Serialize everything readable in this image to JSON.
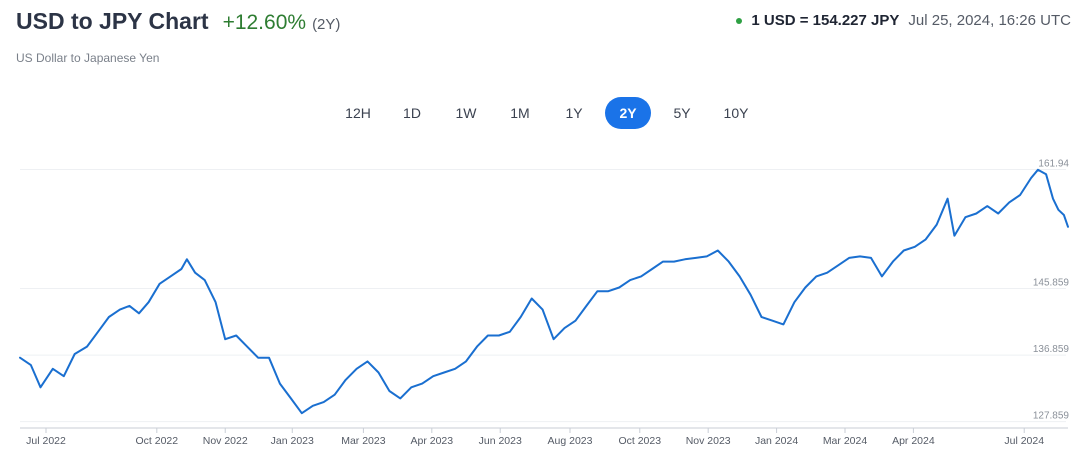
{
  "header": {
    "title": "USD to JPY Chart",
    "change": "+12.60%",
    "period": "(2Y)",
    "subtitle": "US Dollar to Japanese Yen"
  },
  "quote": {
    "rate": "1 USD = 154.227 JPY",
    "timestamp": "Jul 25, 2024, 16:26 UTC",
    "status_color": "#2ea043"
  },
  "ranges": [
    "12H",
    "1D",
    "1W",
    "1M",
    "1Y",
    "2Y",
    "5Y",
    "10Y"
  ],
  "active_range": "2Y",
  "chart_data": {
    "type": "line",
    "title": "",
    "xlabel": "",
    "ylabel": "",
    "line_color": "#1a6fd0",
    "grid": true,
    "y_axis_side": "right",
    "ylim": [
      127.0,
      163.5
    ],
    "y_ticks": [
      {
        "label": "161.94",
        "value": 161.94
      },
      {
        "label": "145.859",
        "value": 145.859
      },
      {
        "label": "136.859",
        "value": 136.859
      },
      {
        "label": "127.859",
        "value": 127.859
      }
    ],
    "x_range": [
      "2022-06-20",
      "2024-07-25"
    ],
    "x_ticks": [
      {
        "label": "Jul 2022",
        "date": "2022-07-09"
      },
      {
        "label": "Oct 2022",
        "date": "2022-09-28"
      },
      {
        "label": "Nov 2022",
        "date": "2022-11-17"
      },
      {
        "label": "Jan 2023",
        "date": "2023-01-05"
      },
      {
        "label": "Mar 2023",
        "date": "2023-02-26"
      },
      {
        "label": "Apr 2023",
        "date": "2023-04-17"
      },
      {
        "label": "Jun 2023",
        "date": "2023-06-06"
      },
      {
        "label": "Aug 2023",
        "date": "2023-07-27"
      },
      {
        "label": "Oct 2023",
        "date": "2023-09-16"
      },
      {
        "label": "Nov 2023",
        "date": "2023-11-05"
      },
      {
        "label": "Jan 2024",
        "date": "2023-12-25"
      },
      {
        "label": "Mar 2024",
        "date": "2024-02-13"
      },
      {
        "label": "Apr 2024",
        "date": "2024-04-03"
      },
      {
        "label": "Jul 2024",
        "date": "2024-06-23"
      }
    ],
    "series": [
      {
        "name": "",
        "points": [
          [
            "2022-06-20",
            136.5
          ],
          [
            "2022-06-28",
            135.5
          ],
          [
            "2022-07-05",
            132.5
          ],
          [
            "2022-07-14",
            135.0
          ],
          [
            "2022-07-22",
            134.0
          ],
          [
            "2022-07-30",
            137.0
          ],
          [
            "2022-08-08",
            138.0
          ],
          [
            "2022-08-16",
            140.0
          ],
          [
            "2022-08-24",
            142.0
          ],
          [
            "2022-09-01",
            143.0
          ],
          [
            "2022-09-08",
            143.5
          ],
          [
            "2022-09-15",
            142.5
          ],
          [
            "2022-09-22",
            144.0
          ],
          [
            "2022-09-30",
            146.5
          ],
          [
            "2022-10-08",
            147.5
          ],
          [
            "2022-10-16",
            148.5
          ],
          [
            "2022-10-20",
            149.8
          ],
          [
            "2022-10-26",
            148.0
          ],
          [
            "2022-11-02",
            147.0
          ],
          [
            "2022-11-10",
            144.0
          ],
          [
            "2022-11-17",
            139.0
          ],
          [
            "2022-11-25",
            139.5
          ],
          [
            "2022-12-03",
            138.0
          ],
          [
            "2022-12-11",
            136.5
          ],
          [
            "2022-12-19",
            136.5
          ],
          [
            "2022-12-27",
            133.0
          ],
          [
            "2023-01-04",
            131.0
          ],
          [
            "2023-01-12",
            129.0
          ],
          [
            "2023-01-20",
            130.0
          ],
          [
            "2023-01-28",
            130.5
          ],
          [
            "2023-02-05",
            131.5
          ],
          [
            "2023-02-13",
            133.5
          ],
          [
            "2023-02-21",
            135.0
          ],
          [
            "2023-03-01",
            136.0
          ],
          [
            "2023-03-09",
            134.5
          ],
          [
            "2023-03-17",
            132.0
          ],
          [
            "2023-03-25",
            131.0
          ],
          [
            "2023-04-02",
            132.5
          ],
          [
            "2023-04-10",
            133.0
          ],
          [
            "2023-04-18",
            134.0
          ],
          [
            "2023-04-26",
            134.5
          ],
          [
            "2023-05-04",
            135.0
          ],
          [
            "2023-05-12",
            136.0
          ],
          [
            "2023-05-20",
            138.0
          ],
          [
            "2023-05-28",
            139.5
          ],
          [
            "2023-06-05",
            139.5
          ],
          [
            "2023-06-13",
            140.0
          ],
          [
            "2023-06-21",
            142.0
          ],
          [
            "2023-06-29",
            144.5
          ],
          [
            "2023-07-07",
            143.0
          ],
          [
            "2023-07-15",
            139.0
          ],
          [
            "2023-07-23",
            140.5
          ],
          [
            "2023-07-31",
            141.5
          ],
          [
            "2023-08-08",
            143.5
          ],
          [
            "2023-08-16",
            145.5
          ],
          [
            "2023-08-24",
            145.5
          ],
          [
            "2023-09-01",
            146.0
          ],
          [
            "2023-09-09",
            147.0
          ],
          [
            "2023-09-17",
            147.5
          ],
          [
            "2023-09-25",
            148.5
          ],
          [
            "2023-10-03",
            149.5
          ],
          [
            "2023-10-11",
            149.5
          ],
          [
            "2023-10-19",
            149.8
          ],
          [
            "2023-10-27",
            150.0
          ],
          [
            "2023-11-04",
            150.2
          ],
          [
            "2023-11-12",
            151.0
          ],
          [
            "2023-11-20",
            149.5
          ],
          [
            "2023-11-28",
            147.5
          ],
          [
            "2023-12-06",
            145.0
          ],
          [
            "2023-12-14",
            142.0
          ],
          [
            "2023-12-22",
            141.5
          ],
          [
            "2023-12-30",
            141.0
          ],
          [
            "2024-01-07",
            144.0
          ],
          [
            "2024-01-15",
            146.0
          ],
          [
            "2024-01-23",
            147.5
          ],
          [
            "2024-01-31",
            148.0
          ],
          [
            "2024-02-08",
            149.0
          ],
          [
            "2024-02-16",
            150.0
          ],
          [
            "2024-02-24",
            150.2
          ],
          [
            "2024-03-03",
            150.0
          ],
          [
            "2024-03-11",
            147.5
          ],
          [
            "2024-03-19",
            149.5
          ],
          [
            "2024-03-27",
            151.0
          ],
          [
            "2024-04-04",
            151.5
          ],
          [
            "2024-04-12",
            152.5
          ],
          [
            "2024-04-20",
            154.5
          ],
          [
            "2024-04-28",
            158.0
          ],
          [
            "2024-05-03",
            153.0
          ],
          [
            "2024-05-11",
            155.5
          ],
          [
            "2024-05-19",
            156.0
          ],
          [
            "2024-05-27",
            157.0
          ],
          [
            "2024-06-04",
            156.0
          ],
          [
            "2024-06-12",
            157.5
          ],
          [
            "2024-06-20",
            158.5
          ],
          [
            "2024-06-28",
            160.8
          ],
          [
            "2024-07-03",
            161.9
          ],
          [
            "2024-07-09",
            161.3
          ],
          [
            "2024-07-14",
            158.0
          ],
          [
            "2024-07-18",
            156.5
          ],
          [
            "2024-07-22",
            155.8
          ],
          [
            "2024-07-25",
            154.2
          ]
        ]
      }
    ]
  }
}
